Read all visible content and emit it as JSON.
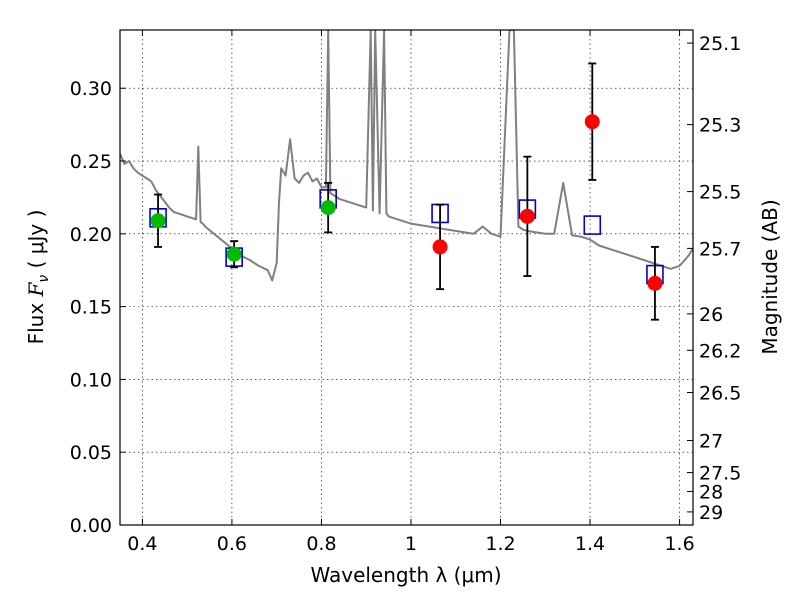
{
  "chart_data": {
    "type": "scatter",
    "xlabel": "Wavelength  λ (μm)",
    "ylabel": "Flux  F_ν  ( μJy )",
    "ylabel_parts": {
      "prefix": "Flux  ",
      "symbol": "F",
      "subscript": "ν",
      "suffix": "  ( μJy )"
    },
    "y2label": "Magnitude (AB)",
    "xlim": [
      0.35,
      1.63
    ],
    "ylim": [
      0.0,
      0.34
    ],
    "grid": true,
    "x_ticks": [
      0.4,
      0.6,
      0.8,
      1.0,
      1.2,
      1.4,
      1.6
    ],
    "x_tick_labels": [
      "0.4",
      "0.6",
      "0.8",
      "1",
      "1.2",
      "1.4",
      "1.6"
    ],
    "y_ticks": [
      0.0,
      0.05,
      0.1,
      0.15,
      0.2,
      0.25,
      0.3
    ],
    "y_tick_labels": [
      "0.00",
      "0.05",
      "0.10",
      "0.15",
      "0.20",
      "0.25",
      "0.30"
    ],
    "y2_ticks": [
      {
        "label": "25.1",
        "flux": 0.331
      },
      {
        "label": "25.3",
        "flux": 0.275
      },
      {
        "label": "25.5",
        "flux": 0.229
      },
      {
        "label": "25.7",
        "flux": 0.19
      },
      {
        "label": "26",
        "flux": 0.145
      },
      {
        "label": "26.2",
        "flux": 0.12
      },
      {
        "label": "26.5",
        "flux": 0.091
      },
      {
        "label": "27",
        "flux": 0.058
      },
      {
        "label": "27.5",
        "flux": 0.036
      },
      {
        "label": "28",
        "flux": 0.023
      },
      {
        "label": "29",
        "flux": 0.009
      }
    ],
    "series": [
      {
        "kind": "model_spectrum",
        "color": "#808080",
        "x": [
          0.35,
          0.36,
          0.37,
          0.38,
          0.39,
          0.4,
          0.41,
          0.42,
          0.43,
          0.44,
          0.45,
          0.46,
          0.47,
          0.48,
          0.5,
          0.52,
          0.525,
          0.53,
          0.535,
          0.54,
          0.56,
          0.58,
          0.6,
          0.62,
          0.64,
          0.66,
          0.68,
          0.69,
          0.7,
          0.705,
          0.71,
          0.72,
          0.73,
          0.74,
          0.75,
          0.76,
          0.77,
          0.78,
          0.79,
          0.8,
          0.81,
          0.815,
          0.82,
          0.83,
          0.84,
          0.86,
          0.88,
          0.9,
          0.91,
          0.915,
          0.92,
          0.93,
          0.94,
          0.945,
          0.95,
          0.97,
          0.99,
          1.0,
          1.02,
          1.04,
          1.06,
          1.08,
          1.1,
          1.12,
          1.14,
          1.16,
          1.18,
          1.2,
          1.22,
          1.23,
          1.24,
          1.25,
          1.26,
          1.28,
          1.3,
          1.32,
          1.34,
          1.36,
          1.38,
          1.4,
          1.42,
          1.44,
          1.46,
          1.48,
          1.5,
          1.52,
          1.54,
          1.56,
          1.58,
          1.6,
          1.62,
          1.63
        ],
        "y": [
          0.255,
          0.248,
          0.25,
          0.245,
          0.242,
          0.24,
          0.238,
          0.236,
          0.23,
          0.226,
          0.222,
          0.218,
          0.215,
          0.214,
          0.212,
          0.21,
          0.26,
          0.208,
          0.207,
          0.205,
          0.2,
          0.195,
          0.19,
          0.185,
          0.182,
          0.178,
          0.175,
          0.168,
          0.18,
          0.22,
          0.245,
          0.24,
          0.265,
          0.238,
          0.235,
          0.24,
          0.242,
          0.236,
          0.238,
          0.232,
          0.232,
          0.34,
          0.228,
          0.226,
          0.224,
          0.222,
          0.22,
          0.218,
          0.34,
          0.216,
          0.34,
          0.214,
          0.34,
          0.214,
          0.212,
          0.21,
          0.208,
          0.207,
          0.206,
          0.205,
          0.204,
          0.203,
          0.202,
          0.201,
          0.2,
          0.205,
          0.2,
          0.198,
          0.34,
          0.34,
          0.205,
          0.203,
          0.202,
          0.201,
          0.2,
          0.2,
          0.235,
          0.199,
          0.198,
          0.196,
          0.192,
          0.19,
          0.188,
          0.186,
          0.184,
          0.182,
          0.18,
          0.178,
          0.176,
          0.178,
          0.185,
          0.19
        ]
      },
      {
        "kind": "model_photometry",
        "marker": "open-square",
        "color": "#0000cc",
        "points": [
          [
            0.435,
            0.211
          ],
          [
            0.605,
            0.184
          ],
          [
            0.815,
            0.224
          ],
          [
            1.065,
            0.214
          ],
          [
            1.26,
            0.217
          ],
          [
            1.405,
            0.206
          ],
          [
            1.545,
            0.172
          ]
        ]
      },
      {
        "kind": "observed",
        "marker": "filled-circle",
        "color": "#00bb00",
        "points": [
          {
            "x": 0.435,
            "y": 0.209,
            "err": 0.018
          },
          {
            "x": 0.605,
            "y": 0.186,
            "err": 0.009
          },
          {
            "x": 0.815,
            "y": 0.218,
            "err": 0.017
          }
        ]
      },
      {
        "kind": "observed",
        "marker": "filled-circle",
        "color": "#ff0000",
        "points": [
          {
            "x": 1.065,
            "y": 0.191,
            "err": 0.029
          },
          {
            "x": 1.26,
            "y": 0.212,
            "err": 0.041
          },
          {
            "x": 1.405,
            "y": 0.277,
            "err": 0.04
          },
          {
            "x": 1.545,
            "y": 0.166,
            "err": 0.025
          }
        ]
      }
    ]
  }
}
